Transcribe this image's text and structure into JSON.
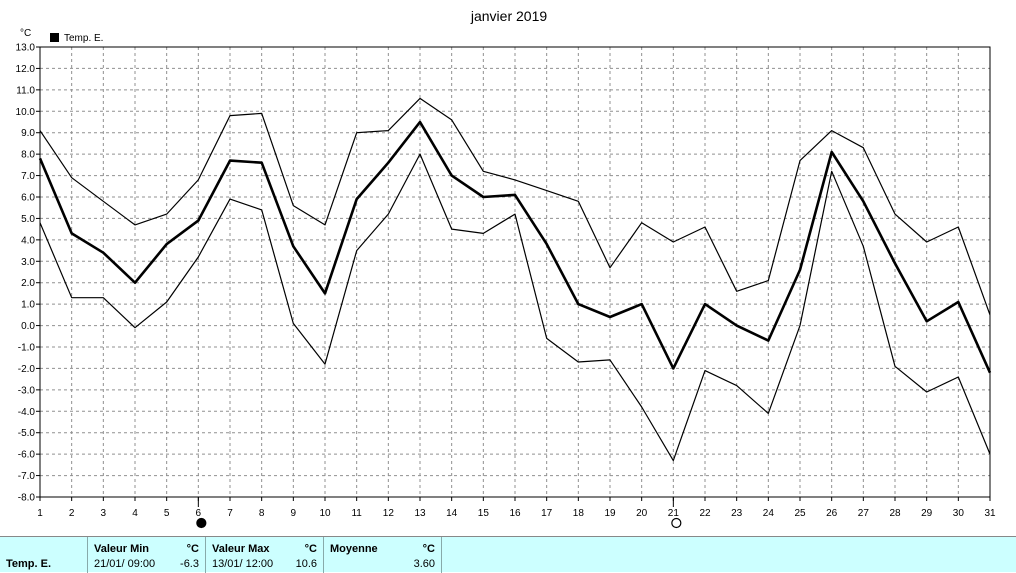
{
  "chart_data": {
    "type": "line",
    "title": "janvier 2019",
    "ylabel": "°C",
    "ylim": [
      -8,
      13
    ],
    "ytick_step": 1,
    "x": [
      1,
      2,
      3,
      4,
      5,
      6,
      7,
      8,
      9,
      10,
      11,
      12,
      13,
      14,
      15,
      16,
      17,
      18,
      19,
      20,
      21,
      22,
      23,
      24,
      25,
      26,
      27,
      28,
      29,
      30,
      31
    ],
    "legend": [
      {
        "name": "Temp. E.",
        "color": "#000000"
      }
    ],
    "grid": true,
    "series": [
      {
        "role": "max",
        "values": [
          9.1,
          6.9,
          5.8,
          4.7,
          5.2,
          6.8,
          9.8,
          9.9,
          5.6,
          4.7,
          9.0,
          9.1,
          10.6,
          9.6,
          7.2,
          6.8,
          6.3,
          5.8,
          2.7,
          4.8,
          3.9,
          4.6,
          1.6,
          2.1,
          7.7,
          9.1,
          8.3,
          5.2,
          3.9,
          4.6,
          0.5
        ]
      },
      {
        "role": "mean",
        "values": [
          7.8,
          4.3,
          3.4,
          2.0,
          3.8,
          4.9,
          7.7,
          7.6,
          3.7,
          1.5,
          5.9,
          7.6,
          9.5,
          7.0,
          6.0,
          6.1,
          3.8,
          1.0,
          0.4,
          1.0,
          -2.0,
          1.0,
          0.0,
          -0.7,
          2.6,
          8.1,
          5.8,
          2.9,
          0.2,
          1.1,
          -2.2
        ]
      },
      {
        "role": "min",
        "values": [
          4.8,
          1.3,
          1.3,
          -0.1,
          1.1,
          3.2,
          5.9,
          5.4,
          0.1,
          -1.8,
          3.5,
          5.2,
          8.0,
          4.5,
          4.3,
          5.2,
          -0.6,
          -1.7,
          -1.6,
          -3.8,
          -6.3,
          -2.1,
          -2.8,
          -4.1,
          0.0,
          7.2,
          3.7,
          -1.9,
          -3.1,
          -2.4,
          -6.0
        ]
      }
    ],
    "moon_phases": [
      {
        "day": 6,
        "phase": "new-moon"
      },
      {
        "day": 21,
        "phase": "full-moon"
      }
    ]
  },
  "footer": {
    "series_label": "Temp. E.",
    "min": {
      "title": "Valeur Min",
      "unit": "°C",
      "date": "21/01/  09:00",
      "value": "-6.3"
    },
    "max": {
      "title": "Valeur Max",
      "unit": "°C",
      "date": "13/01/  12:00",
      "value": "10.6"
    },
    "mean": {
      "title": "Moyenne",
      "unit": "°C",
      "value": "3.60"
    }
  }
}
